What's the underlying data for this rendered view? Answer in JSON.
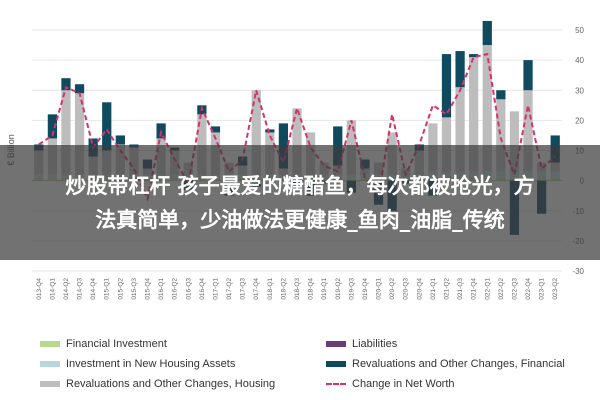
{
  "banner": {
    "line1": "炒股带杠杆 孩子最爱的糖醋鱼，每次都被抢光，方",
    "line2": "法真简单，少油做法更健康_鱼肉_油脂_传统"
  },
  "chart_data": {
    "type": "bar",
    "stacked": true,
    "y_axis_label": "€ Billion",
    "ylim": [
      -30,
      50
    ],
    "yticks": [
      -30,
      -20,
      -10,
      0,
      10,
      20,
      30,
      40,
      50
    ],
    "y_axis_side": "right",
    "grid": true,
    "legend_position": "bottom",
    "categories": [
      "2013-Q4",
      "2014-Q1",
      "2014-Q2",
      "2014-Q3",
      "2014-Q4",
      "2015-Q1",
      "2015-Q2",
      "2015-Q3",
      "2015-Q4",
      "2016-Q1",
      "2016-Q2",
      "2016-Q3",
      "2016-Q4",
      "2017-Q1",
      "2017-Q2",
      "2017-Q3",
      "2017-Q4",
      "2018-Q1",
      "2018-Q2",
      "2018-Q3",
      "2018-Q4",
      "2019-Q1",
      "2019-Q2",
      "2019-Q3",
      "2019-Q4",
      "2020-Q1",
      "2020-Q2",
      "2020-Q3",
      "2020-Q4",
      "2021-Q1",
      "2021-Q2",
      "2021-Q3",
      "2021-Q4",
      "2022-Q1",
      "2022-Q2",
      "2022-Q3",
      "2022-Q4",
      "2023-Q1",
      "2023-Q2"
    ],
    "series": [
      {
        "name": "Financial Investment",
        "color": "#b7d98b",
        "kind": "bar",
        "values": [
          1,
          1,
          1,
          1,
          1,
          1,
          1,
          1,
          1,
          1,
          1,
          1,
          1,
          1,
          1,
          1,
          1,
          1,
          1,
          1,
          1,
          1,
          1,
          1,
          1,
          1,
          1,
          1,
          1,
          1,
          1,
          1,
          1,
          1,
          1,
          1,
          1,
          1,
          1
        ]
      },
      {
        "name": "Investment in New Housing Assets",
        "color": "#b6d8dd",
        "kind": "bar",
        "values": [
          1,
          1,
          1,
          1,
          1,
          1,
          1,
          1,
          1,
          1,
          1,
          1,
          1,
          1,
          1,
          1,
          1,
          1,
          1,
          1,
          1,
          1,
          1,
          1,
          1,
          1,
          1,
          1,
          1,
          2,
          2,
          2,
          2,
          2,
          2,
          2,
          2,
          2,
          2
        ]
      },
      {
        "name": "Revaluations and Other Changes, Housing",
        "color": "#bdbdbd",
        "kind": "bar",
        "values": [
          8,
          12,
          28,
          27,
          6,
          8,
          10,
          9,
          2,
          12,
          8,
          4,
          20,
          14,
          4,
          3,
          28,
          14,
          2,
          22,
          14,
          4,
          3,
          18,
          2,
          4,
          14,
          2,
          8,
          16,
          18,
          28,
          38,
          42,
          24,
          20,
          27,
          3,
          3
        ]
      },
      {
        "name": "Liabilities",
        "color": "#6a3d7a",
        "kind": "bar",
        "values": [
          0,
          0,
          0,
          0,
          0,
          0,
          0,
          0,
          0,
          0,
          0,
          0,
          0,
          0,
          0,
          0,
          0,
          0,
          0,
          0,
          0,
          0,
          0,
          0,
          0,
          0,
          0,
          0,
          0,
          0,
          0,
          0,
          0,
          0,
          0,
          0,
          0,
          0,
          0
        ]
      },
      {
        "name": "Revaluations and Other Changes, Financial",
        "color": "#0f4a5f",
        "kind": "bar",
        "values": [
          2,
          8,
          4,
          3,
          6,
          16,
          3,
          1,
          3,
          5,
          1,
          -3,
          3,
          2,
          -5,
          3,
          -2,
          1,
          15,
          -3,
          -5,
          -1,
          13,
          -4,
          3,
          -8,
          -10,
          -1,
          2,
          -5,
          21,
          12,
          1,
          8,
          3,
          -18,
          10,
          -11,
          9
        ]
      },
      {
        "name": "Change in Net Worth",
        "color": "#d6336c",
        "kind": "line",
        "values": [
          12,
          15,
          31,
          29,
          11,
          17,
          10,
          4,
          -6,
          16,
          7,
          -1,
          24,
          14,
          3,
          7,
          30,
          15,
          6,
          24,
          11,
          5,
          3,
          20,
          1,
          -5,
          22,
          2,
          12,
          25,
          22,
          30,
          41,
          42,
          14,
          2,
          25,
          4,
          8
        ]
      }
    ]
  },
  "legend": {
    "items": [
      {
        "label": "Financial Investment",
        "color": "#b7d98b",
        "style": "bar"
      },
      {
        "label": "Liabilities",
        "color": "#6a3d7a",
        "style": "bar"
      },
      {
        "label": "Investment in New Housing Assets",
        "color": "#b6d8dd",
        "style": "bar"
      },
      {
        "label": "Revaluations and Other Changes, Financial",
        "color": "#0f4a5f",
        "style": "bar"
      },
      {
        "label": "Revaluations and Other Changes, Housing",
        "color": "#bdbdbd",
        "style": "bar"
      },
      {
        "label": "Change in Net Worth",
        "color": "#d6336c",
        "style": "dash"
      }
    ]
  }
}
